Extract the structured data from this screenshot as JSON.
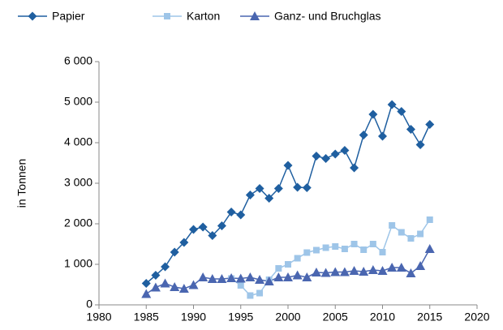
{
  "chart_data": {
    "type": "line",
    "y_label": "in Tonnen",
    "x": [
      1985,
      1986,
      1987,
      1988,
      1989,
      1990,
      1991,
      1992,
      1993,
      1994,
      1995,
      1996,
      1997,
      1998,
      1999,
      2000,
      2001,
      2002,
      2003,
      2004,
      2005,
      2006,
      2007,
      2008,
      2009,
      2010,
      2011,
      2012,
      2013,
      2014,
      2015
    ],
    "series": [
      {
        "name": "Papier",
        "color": "#1f5fa0",
        "marker": "diamond",
        "values": [
          530,
          730,
          940,
          1300,
          1540,
          1860,
          1920,
          1710,
          1950,
          2290,
          2220,
          2710,
          2870,
          2630,
          2870,
          3440,
          2900,
          2890,
          3670,
          3610,
          3720,
          3810,
          3380,
          4190,
          4700,
          4160,
          4940,
          4770,
          4330,
          3950,
          4450
        ]
      },
      {
        "name": "Karton",
        "color": "#9ec5e8",
        "marker": "square",
        "values": [
          null,
          null,
          null,
          null,
          null,
          null,
          null,
          null,
          null,
          650,
          480,
          230,
          290,
          620,
          900,
          1000,
          1150,
          1290,
          1350,
          1410,
          1440,
          1380,
          1500,
          1360,
          1500,
          1300,
          1960,
          1790,
          1640,
          1750,
          2100
        ]
      },
      {
        "name": "Ganz- und Bruchglas",
        "color": "#4a66b0",
        "marker": "triangle",
        "values": [
          270,
          430,
          530,
          440,
          400,
          490,
          680,
          640,
          640,
          660,
          650,
          680,
          620,
          580,
          680,
          680,
          730,
          680,
          800,
          790,
          810,
          810,
          840,
          820,
          860,
          840,
          920,
          920,
          780,
          960,
          1380
        ]
      }
    ],
    "xlim": [
      1980,
      2020
    ],
    "xticks": [
      1980,
      1985,
      1990,
      1995,
      2000,
      2005,
      2010,
      2015,
      2020
    ],
    "ylim": [
      0,
      6000
    ],
    "yticks": [
      0,
      {
        "value": 1000,
        "label": "1 000"
      },
      {
        "value": 2000,
        "label": "2 000"
      },
      {
        "value": 3000,
        "label": "3 000"
      },
      {
        "value": 4000,
        "label": "4 000"
      },
      {
        "value": 5000,
        "label": "5 000"
      },
      {
        "value": 6000,
        "label": "6 000"
      }
    ],
    "legend": "top",
    "grid": false
  }
}
